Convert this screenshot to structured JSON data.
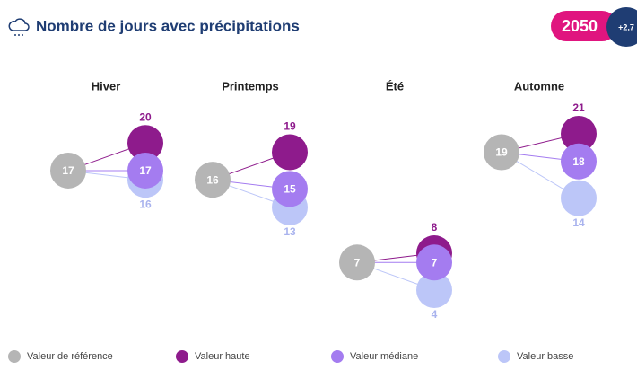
{
  "chart_data": {
    "type": "dot",
    "title": "Nombre de jours avec précipitations",
    "badge": "2050",
    "badge_sub": "+2,7",
    "categories": [
      "Hiver",
      "Printemps",
      "Été",
      "Automne"
    ],
    "series": [
      {
        "name": "Valeur de référence",
        "color": "#b5b5b5",
        "values": [
          17,
          16,
          7,
          19
        ]
      },
      {
        "name": "Valeur haute",
        "color": "#8e1b8c",
        "values": [
          20,
          19,
          8,
          21
        ]
      },
      {
        "name": "Valeur médiane",
        "color": "#a47cf0",
        "values": [
          17,
          15,
          7,
          18
        ]
      },
      {
        "name": "Valeur basse",
        "color": "#bcc6f8",
        "values": [
          16,
          13,
          4,
          14
        ]
      }
    ]
  }
}
